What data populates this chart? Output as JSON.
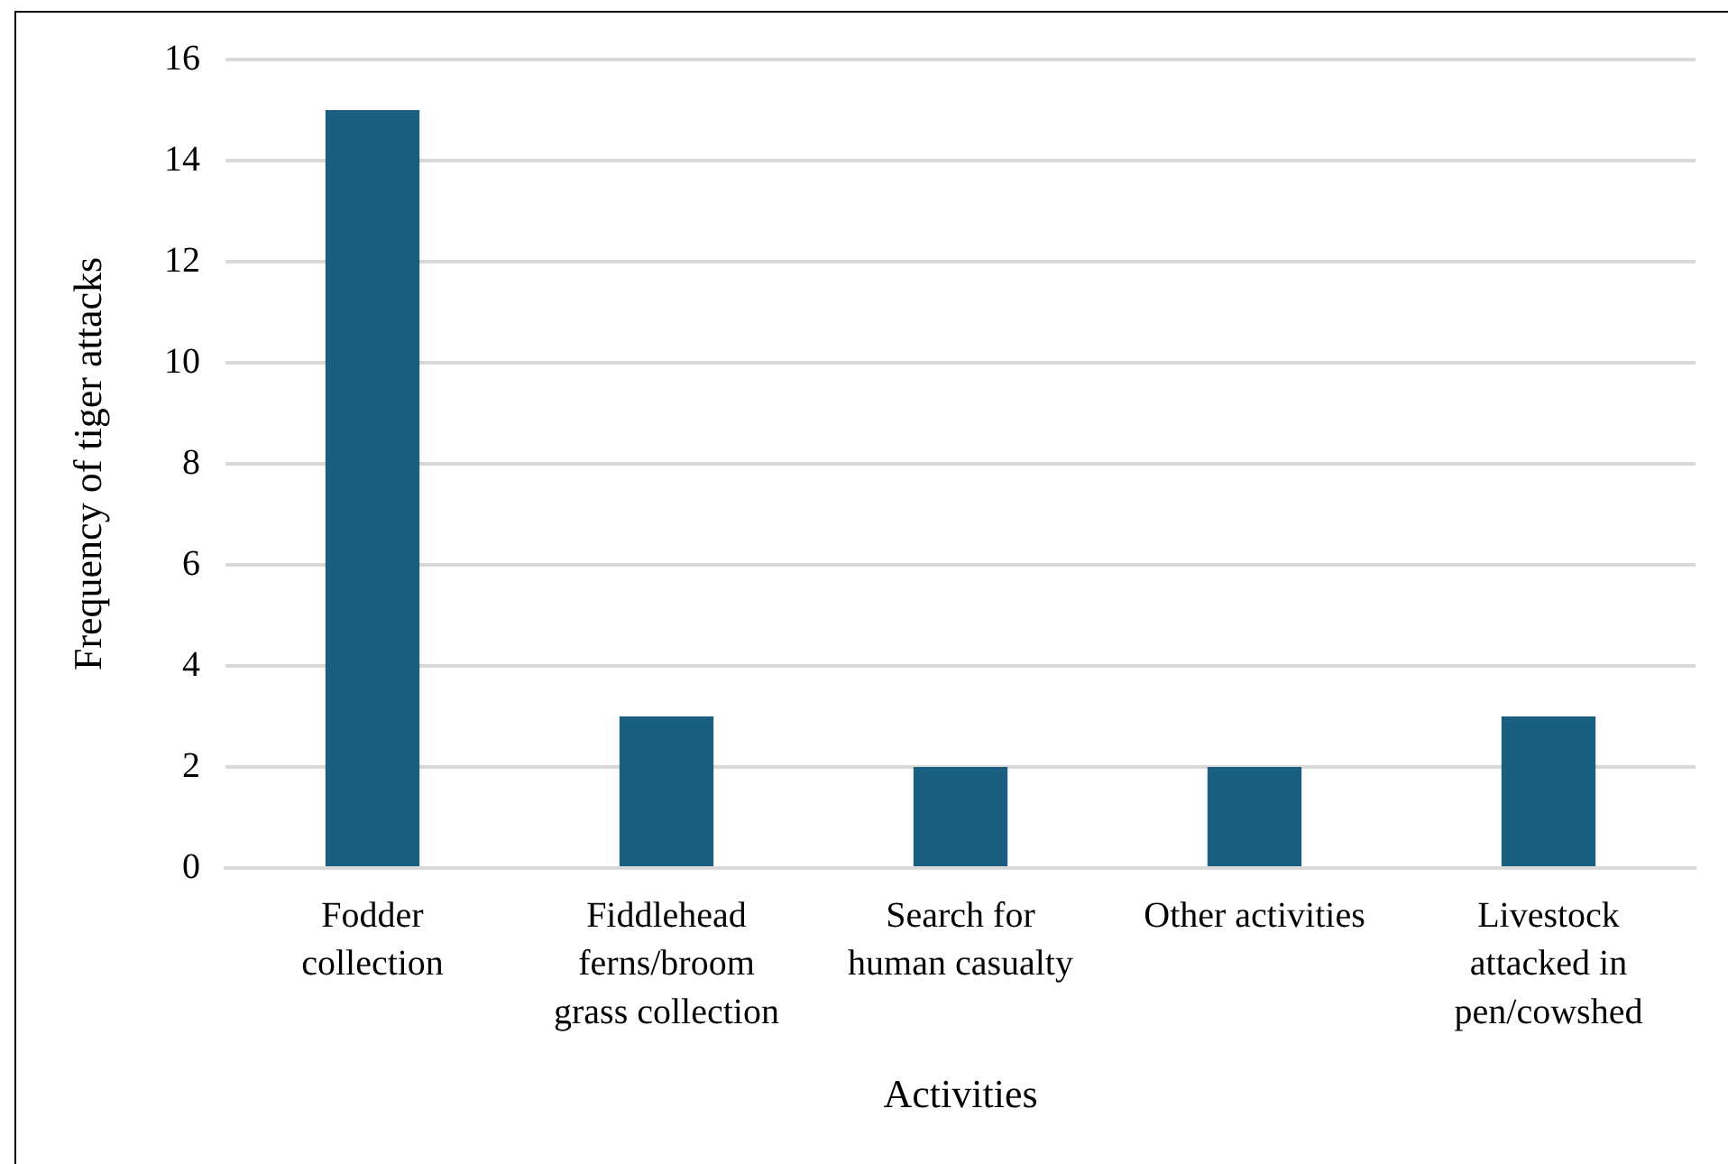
{
  "chart_data": {
    "type": "bar",
    "xlabel": "Activities",
    "ylabel": "Frequency of tiger attacks",
    "categories": [
      "Fodder collection",
      "Fiddlehead ferns/broom grass collection",
      "Search for human casualty",
      "Other activities",
      "Livestock attacked in pen/cowshed"
    ],
    "values": [
      15,
      3,
      2,
      2,
      3
    ],
    "color": "#1a5f80",
    "ylim": [
      0,
      16
    ],
    "yticks": [
      0,
      2,
      4,
      6,
      8,
      10,
      12,
      14,
      16
    ],
    "grid": "y"
  }
}
